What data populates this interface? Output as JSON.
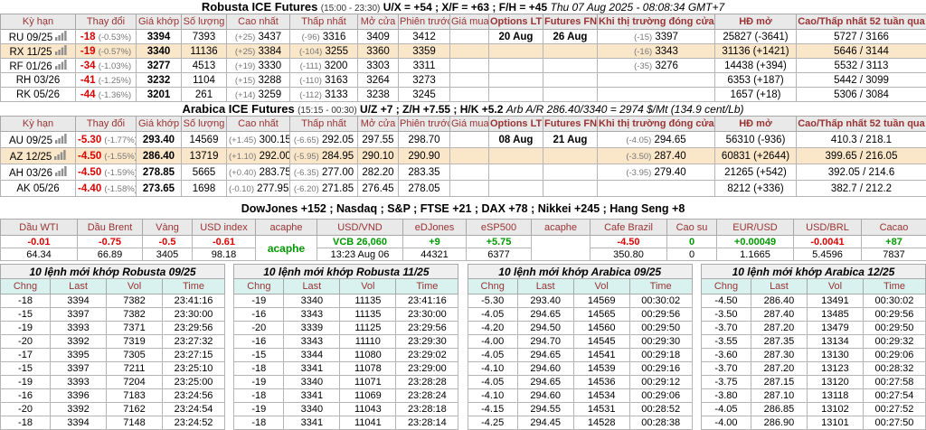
{
  "robusta_header": {
    "title": "Robusta ICE Futures",
    "session": "(15:00 - 23:30)",
    "spreads": "U/X = +54 ; X/F = +63 ; F/H = +45",
    "datetime": "Thu 07 Aug 2025 - 08:08:34 GMT+7"
  },
  "arabica_header": {
    "title": "Arabica ICE Futures",
    "session": "(15:15 - 00:30)",
    "spreads": "U/Z +7 ; Z/H +7.55 ; H/K +5.2",
    "arbitrage": "Arb A/R 286.40/3340 = 2974 $/Mt (134.9 cent/Lb)"
  },
  "world_indices": "DowJones +152 ; Nasdaq ; S&P ; FTSE +21 ; DAX +78 ; Nikkei +245 ; Hang Seng +8",
  "futures_columns": [
    "Kỳ hạn",
    "Thay đổi",
    "Giá khớp",
    "Số lượng",
    "Cao nhất",
    "Thấp nhất",
    "Mở cửa",
    "Phiên trước",
    "Giá mua",
    "Options LTD",
    "Futures FND",
    "Khi thị trường đóng cửa",
    "HĐ mở",
    "Cao/Thấp nhất 52 tuần qua"
  ],
  "robusta_rows": [
    {
      "contract": "RU 09/25",
      "icon": true,
      "highlight": false,
      "change": "-18",
      "change_pct": "(-0.53%)",
      "last": "3394",
      "volume": "7393",
      "high_d": "(+25)",
      "high": "3437",
      "low_d": "(-96)",
      "low": "3316",
      "open": "3409",
      "prev": "3412",
      "buy": "",
      "options_ltd": "20 Aug",
      "futures_fnd": "26 Aug",
      "close_d": "(-15)",
      "close": "3397",
      "oi": "25827 (-3641)",
      "range52": "5727 / 3166"
    },
    {
      "contract": "RX 11/25",
      "icon": true,
      "highlight": true,
      "change": "-19",
      "change_pct": "(-0.57%)",
      "last": "3340",
      "volume": "11136",
      "high_d": "(+25)",
      "high": "3384",
      "low_d": "(-104)",
      "low": "3255",
      "open": "3360",
      "prev": "3359",
      "buy": "",
      "options_ltd": "",
      "futures_fnd": "",
      "close_d": "(-16)",
      "close": "3343",
      "oi": "31136 (+1421)",
      "range52": "5646 / 3144"
    },
    {
      "contract": "RF 01/26",
      "icon": true,
      "highlight": false,
      "change": "-34",
      "change_pct": "(-1.03%)",
      "last": "3277",
      "volume": "4513",
      "high_d": "(+19)",
      "high": "3330",
      "low_d": "(-111)",
      "low": "3200",
      "open": "3303",
      "prev": "3311",
      "buy": "",
      "options_ltd": "",
      "futures_fnd": "",
      "close_d": "(-35)",
      "close": "3276",
      "oi": "14438 (+394)",
      "range52": "5532 / 3113"
    },
    {
      "contract": "RH 03/26",
      "icon": false,
      "highlight": false,
      "change": "-41",
      "change_pct": "(-1.25%)",
      "last": "3232",
      "volume": "1104",
      "high_d": "(+15)",
      "high": "3288",
      "low_d": "(-110)",
      "low": "3163",
      "open": "3264",
      "prev": "3273",
      "buy": "",
      "options_ltd": "",
      "futures_fnd": "",
      "close_d": "",
      "close": "",
      "oi": "6353 (+187)",
      "range52": "5442 / 3099"
    },
    {
      "contract": "RK 05/26",
      "icon": false,
      "highlight": false,
      "change": "-44",
      "change_pct": "(-1.36%)",
      "last": "3201",
      "volume": "261",
      "high_d": "(+14)",
      "high": "3259",
      "low_d": "(-112)",
      "low": "3133",
      "open": "3238",
      "prev": "3245",
      "buy": "",
      "options_ltd": "",
      "futures_fnd": "",
      "close_d": "",
      "close": "",
      "oi": "1657 (+18)",
      "range52": "5306 / 3084"
    }
  ],
  "arabica_rows": [
    {
      "contract": "AU 09/25",
      "icon": true,
      "highlight": false,
      "change": "-5.30",
      "change_pct": "(-1.77%)",
      "last": "293.40",
      "volume": "14569",
      "high_d": "(+1.45)",
      "high": "300.15",
      "low_d": "(-6.65)",
      "low": "292.05",
      "open": "297.55",
      "prev": "298.70",
      "buy": "",
      "options_ltd": "08 Aug",
      "futures_fnd": "21 Aug",
      "close_d": "(-4.05)",
      "close": "294.65",
      "oi": "56310 (-936)",
      "range52": "410.3 / 218.1"
    },
    {
      "contract": "AZ 12/25",
      "icon": true,
      "highlight": true,
      "change": "-4.50",
      "change_pct": "(-1.55%)",
      "last": "286.40",
      "volume": "13719",
      "high_d": "(+1.10)",
      "high": "292.00",
      "low_d": "(-5.95)",
      "low": "284.95",
      "open": "290.10",
      "prev": "290.90",
      "buy": "",
      "options_ltd": "",
      "futures_fnd": "",
      "close_d": "(-3.50)",
      "close": "287.40",
      "oi": "60831 (+2644)",
      "range52": "399.65 / 216.05"
    },
    {
      "contract": "AH 03/26",
      "icon": true,
      "highlight": false,
      "change": "-4.50",
      "change_pct": "(-1.59%)",
      "last": "278.85",
      "volume": "5665",
      "high_d": "(+0.40)",
      "high": "283.75",
      "low_d": "(-6.35)",
      "low": "277.00",
      "open": "282.20",
      "prev": "283.35",
      "buy": "",
      "options_ltd": "",
      "futures_fnd": "",
      "close_d": "(-3.95)",
      "close": "279.40",
      "oi": "21265 (+542)",
      "range52": "392.05 / 214.6"
    },
    {
      "contract": "AK 05/26",
      "icon": false,
      "highlight": false,
      "change": "-4.40",
      "change_pct": "(-1.58%)",
      "last": "273.65",
      "volume": "1698",
      "high_d": "(-0.10)",
      "high": "277.95",
      "low_d": "(-6.20)",
      "low": "271.85",
      "open": "276.45",
      "prev": "278.05",
      "buy": "",
      "options_ltd": "",
      "futures_fnd": "",
      "close_d": "",
      "close": "",
      "oi": "8212 (+336)",
      "range52": "382.7 / 212.2"
    }
  ],
  "market": {
    "columns": [
      "Dầu WTI",
      "Dầu Brent",
      "Vàng",
      "USD index",
      "acaphe",
      "USD/VND",
      "eDJones",
      "eSP500",
      "acaphe",
      "Cafe Brazil",
      "Cao su",
      "EUR/USD",
      "USD/BRL",
      "Cacao"
    ],
    "change_row": [
      {
        "t": "-0.01",
        "c": "neg"
      },
      {
        "t": "-0.75",
        "c": "neg"
      },
      {
        "t": "-0.5",
        "c": "neg"
      },
      {
        "t": "-0.61",
        "c": "neg"
      },
      {
        "t": "acaphe",
        "c": "acaphe",
        "span": 2
      },
      {
        "t": "VCB 26,060",
        "c": "pos"
      },
      {
        "t": "+9",
        "c": "pos"
      },
      {
        "t": "+5.75",
        "c": "pos"
      },
      {
        "t": "",
        "c": "",
        "span": 2
      },
      {
        "t": "-4.50",
        "c": "neg"
      },
      {
        "t": "0",
        "c": "pos"
      },
      {
        "t": "+0.00049",
        "c": "pos"
      },
      {
        "t": "-0.0041",
        "c": "neg"
      },
      {
        "t": "+87",
        "c": "pos"
      }
    ],
    "value_row": [
      "64.34",
      "66.89",
      "3405",
      "98.18",
      null,
      "13:23 Aug 06",
      "44321",
      "6377",
      null,
      "350.80",
      "0",
      "1.1665",
      "5.4596",
      "7837"
    ]
  },
  "trade_columns": [
    "Chng",
    "Last",
    "Vol",
    "Time"
  ],
  "trade_tables": [
    {
      "title": "10 lệnh mới khớp Robusta 09/25",
      "rows": [
        [
          "-18",
          "3394",
          "7382",
          "23:41:16"
        ],
        [
          "-15",
          "3397",
          "7382",
          "23:30:00"
        ],
        [
          "-19",
          "3393",
          "7371",
          "23:29:56"
        ],
        [
          "-20",
          "3392",
          "7319",
          "23:27:32"
        ],
        [
          "-17",
          "3395",
          "7305",
          "23:27:15"
        ],
        [
          "-15",
          "3397",
          "7211",
          "23:25:10"
        ],
        [
          "-19",
          "3393",
          "7204",
          "23:25:00"
        ],
        [
          "-16",
          "3396",
          "7183",
          "23:24:56"
        ],
        [
          "-20",
          "3392",
          "7162",
          "23:24:54"
        ],
        [
          "-18",
          "3394",
          "7148",
          "23:24:52"
        ]
      ]
    },
    {
      "title": "10 lệnh mới khớp Robusta 11/25",
      "rows": [
        [
          "-19",
          "3340",
          "11135",
          "23:41:16"
        ],
        [
          "-16",
          "3343",
          "11135",
          "23:30:00"
        ],
        [
          "-20",
          "3339",
          "11125",
          "23:29:56"
        ],
        [
          "-16",
          "3343",
          "11110",
          "23:29:30"
        ],
        [
          "-15",
          "3344",
          "11080",
          "23:29:02"
        ],
        [
          "-18",
          "3341",
          "11078",
          "23:29:00"
        ],
        [
          "-19",
          "3340",
          "11071",
          "23:28:28"
        ],
        [
          "-18",
          "3341",
          "11069",
          "23:28:24"
        ],
        [
          "-19",
          "3340",
          "11043",
          "23:28:18"
        ],
        [
          "-18",
          "3341",
          "11041",
          "23:28:14"
        ]
      ]
    },
    {
      "title": "10 lệnh mới khớp Arabica 09/25",
      "rows": [
        [
          "-5.30",
          "293.40",
          "14569",
          "00:30:02"
        ],
        [
          "-4.05",
          "294.65",
          "14565",
          "00:29:56"
        ],
        [
          "-4.20",
          "294.50",
          "14560",
          "00:29:50"
        ],
        [
          "-4.00",
          "294.70",
          "14545",
          "00:29:30"
        ],
        [
          "-4.05",
          "294.65",
          "14541",
          "00:29:18"
        ],
        [
          "-4.10",
          "294.60",
          "14539",
          "00:29:16"
        ],
        [
          "-4.05",
          "294.65",
          "14536",
          "00:29:12"
        ],
        [
          "-4.10",
          "294.60",
          "14534",
          "00:29:06"
        ],
        [
          "-4.15",
          "294.55",
          "14531",
          "00:28:52"
        ],
        [
          "-4.25",
          "294.45",
          "14528",
          "00:28:38"
        ]
      ]
    },
    {
      "title": "10 lệnh mới khớp Arabica 12/25",
      "rows": [
        [
          "-4.50",
          "286.40",
          "13491",
          "00:30:02"
        ],
        [
          "-3.50",
          "287.40",
          "13485",
          "00:29:56"
        ],
        [
          "-3.70",
          "287.20",
          "13479",
          "00:29:50"
        ],
        [
          "-3.55",
          "287.35",
          "13134",
          "00:29:32"
        ],
        [
          "-3.60",
          "287.30",
          "13130",
          "00:29:06"
        ],
        [
          "-3.70",
          "287.20",
          "13123",
          "00:28:32"
        ],
        [
          "-3.75",
          "287.15",
          "13120",
          "00:27:58"
        ],
        [
          "-3.80",
          "287.10",
          "13118",
          "00:27:54"
        ],
        [
          "-4.05",
          "286.85",
          "13102",
          "00:27:52"
        ],
        [
          "-4.00",
          "286.90",
          "13101",
          "00:27:50"
        ]
      ]
    }
  ]
}
